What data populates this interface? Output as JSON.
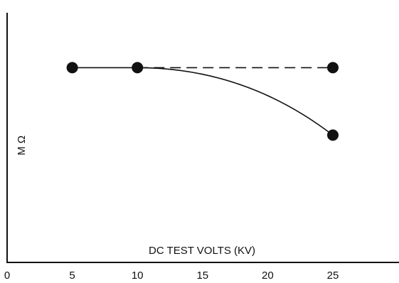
{
  "chart_data": {
    "type": "line",
    "xlabel": "DC TEST VOLTS (KV)",
    "ylabel": "M Ω",
    "xlim": [
      0,
      30
    ],
    "ylim": [
      0,
      100
    ],
    "x_ticks": [
      0,
      5,
      10,
      15,
      20,
      25
    ],
    "y_ticks": [],
    "grid": false,
    "legend": "none",
    "marker": "filled-circle",
    "series": [
      {
        "line_style": "solid",
        "curve": "smooth",
        "color": "#111111",
        "points": [
          {
            "x": 5,
            "y": 78
          },
          {
            "x": 10,
            "y": 78
          },
          {
            "x": 25,
            "y": 51
          }
        ]
      },
      {
        "line_style": "dashed",
        "color": "#111111",
        "points": [
          {
            "x": 10,
            "y": 78
          },
          {
            "x": 25,
            "y": 78
          }
        ]
      }
    ]
  }
}
